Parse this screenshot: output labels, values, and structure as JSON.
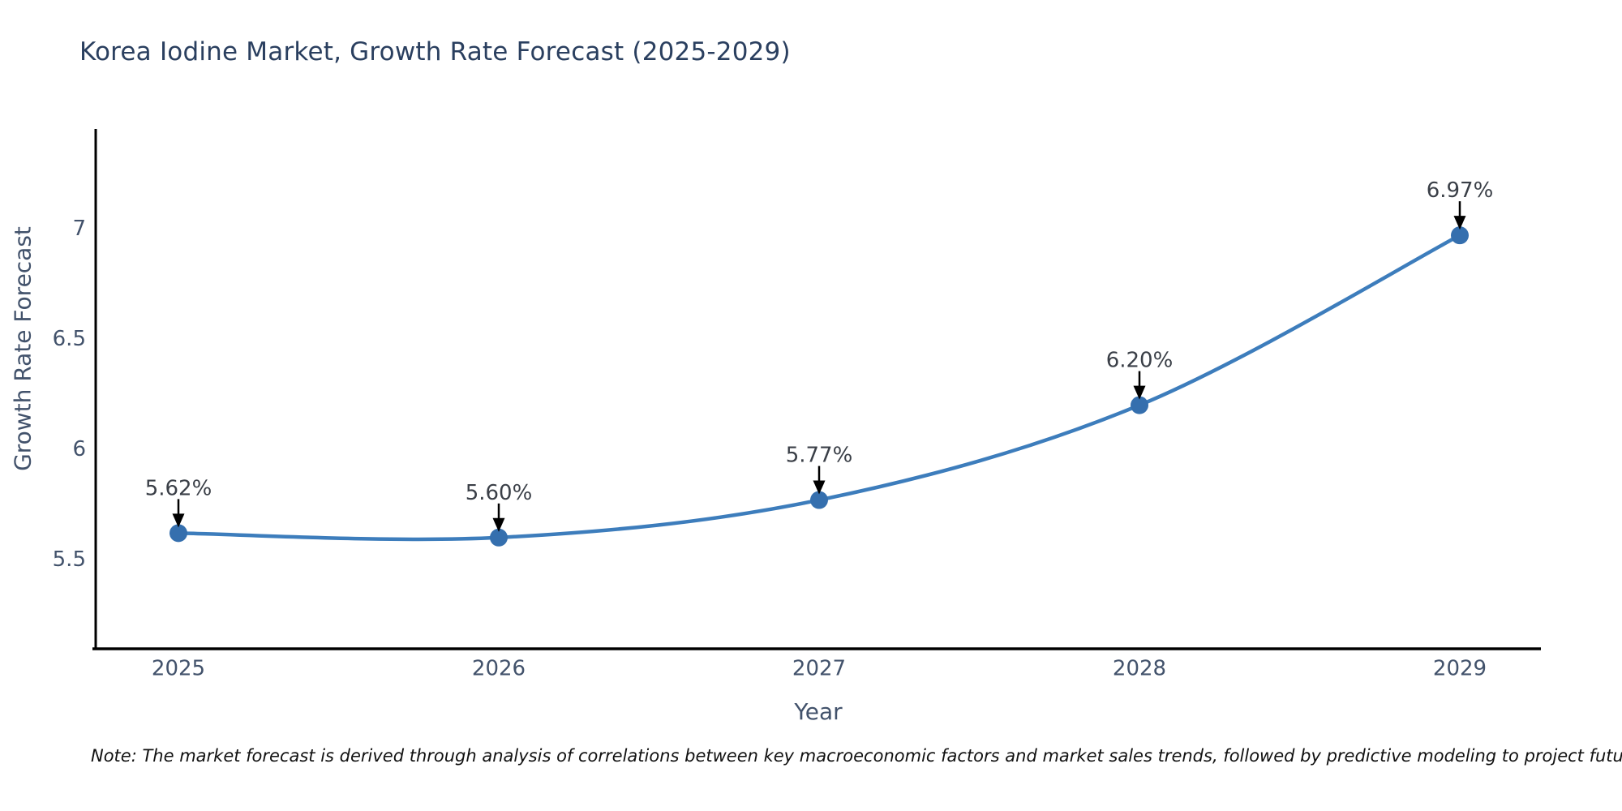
{
  "note": {
    "text": "Note: The market forecast is derived through analysis of correlations between key macroeconomic factors and market sales trends, followed by predictive modeling to project future sales"
  },
  "chart_data": {
    "type": "line",
    "title": "Korea Iodine Market, Growth Rate Forecast (2025-2029)",
    "xlabel": "Year",
    "ylabel": "Growth Rate Forecast",
    "categories": [
      "2025",
      "2026",
      "2027",
      "2028",
      "2029"
    ],
    "series": [
      {
        "name": "Growth Rate Forecast",
        "values": [
          5.62,
          5.6,
          5.77,
          6.2,
          6.97
        ]
      }
    ],
    "point_labels": [
      "5.62%",
      "5.60%",
      "5.77%",
      "6.20%",
      "6.97%"
    ],
    "yticks": [
      5.5,
      6,
      6.5,
      7
    ],
    "ytick_labels": [
      "5.5",
      "6",
      "6.5",
      "7"
    ],
    "ylim": [
      5.1,
      7.45
    ],
    "grid": false,
    "legend": false,
    "line_shape": "spline",
    "marker": "circle",
    "annotation_arrows": true,
    "colors": {
      "line": "#3d7dbc",
      "marker": "#356fae",
      "axis": "#000000",
      "tick_text": "#42526b",
      "title_text": "#2a3f5f",
      "annotation_text": "#3a3f47",
      "arrow": "#000000"
    }
  }
}
